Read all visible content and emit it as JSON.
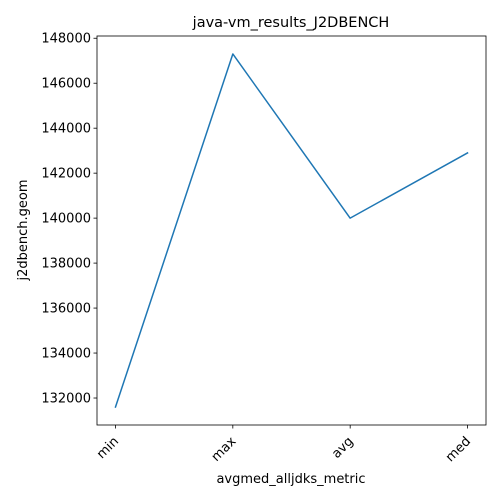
{
  "chart_data": {
    "type": "line",
    "title": "java-vm_results_J2DBENCH",
    "xlabel": "avgmed_alljdks_metric",
    "ylabel": "j2dbench.geom",
    "categories": [
      "min",
      "max",
      "avg",
      "med"
    ],
    "series": [
      {
        "values": [
          131600,
          147300,
          140000,
          142900
        ]
      }
    ],
    "ylim": [
      130800,
      148100
    ],
    "yticks": [
      132000,
      134000,
      136000,
      138000,
      140000,
      142000,
      144000,
      146000,
      148000
    ],
    "ytick_labels": [
      "132000",
      "134000",
      "136000",
      "138000",
      "140000",
      "142000",
      "144000",
      "146000",
      "148000"
    ],
    "grid": false,
    "line_color": "#1f77b4"
  }
}
